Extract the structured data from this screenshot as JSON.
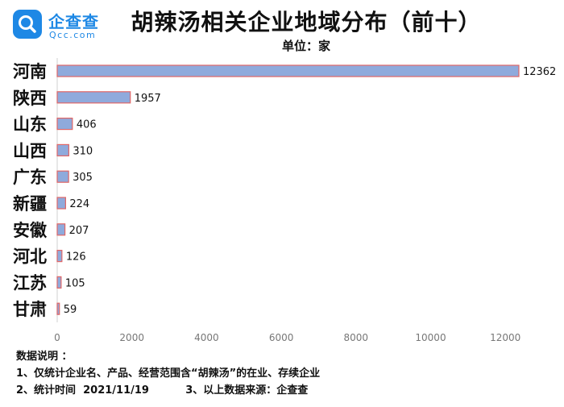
{
  "logo": {
    "cn": "企查查",
    "en": "Qcc.com"
  },
  "colors": {
    "bar_fill": "#8faadc",
    "bar_stroke": "#e06666",
    "brand": "#1e88e5"
  },
  "chart_data": {
    "type": "bar",
    "orientation": "horizontal",
    "title": "胡辣汤相关企业地域分布（前十）",
    "unit_label": "单位：家",
    "categories": [
      "河南",
      "陕西",
      "山东",
      "山西",
      "广东",
      "新疆",
      "安徽",
      "河北",
      "江苏",
      "甘肃"
    ],
    "values": [
      12362,
      1957,
      406,
      310,
      305,
      224,
      207,
      126,
      105,
      59
    ],
    "xlim": [
      0,
      12000
    ],
    "xticks": [
      "0",
      "2000",
      "4000",
      "6000",
      "8000",
      "10000",
      "12000"
    ],
    "grid": false
  },
  "notes": {
    "heading": "数据说明 ：",
    "line1": "1、仅统计企业名、产品、经营范围含“胡辣汤”的在业、存续企业",
    "line2": "2、统计时间  2021/11/19          3、以上数据来源：企查查"
  }
}
